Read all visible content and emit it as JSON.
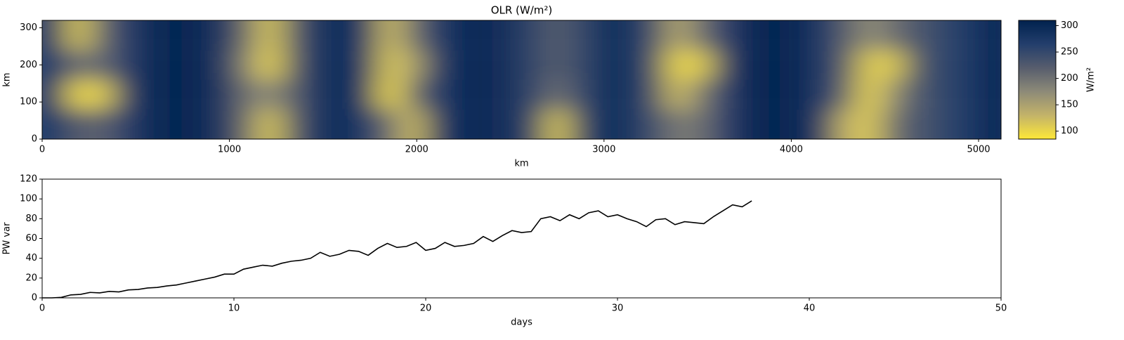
{
  "chart_data": [
    {
      "type": "heatmap",
      "title": "OLR (W/m²)",
      "xlabel": "km",
      "ylabel": "km",
      "xlim": [
        0,
        5120
      ],
      "ylim": [
        0,
        320
      ],
      "xticks": [
        0,
        1000,
        2000,
        3000,
        4000,
        5000
      ],
      "yticks": [
        0,
        100,
        200,
        300
      ],
      "x": [
        64,
        192,
        320,
        448,
        576,
        704,
        832,
        960,
        1088,
        1216,
        1344,
        1472,
        1600,
        1728,
        1856,
        1984,
        2112,
        2240,
        2368,
        2496,
        2624,
        2752,
        2880,
        3008,
        3136,
        3264,
        3392,
        3520,
        3648,
        3776,
        3904,
        4032,
        4160,
        4288,
        4416,
        4544,
        4672,
        4800,
        4928,
        5056
      ],
      "y": [
        40,
        120,
        200,
        280
      ],
      "z": [
        [
          270,
          220,
          215,
          260,
          295,
          305,
          300,
          280,
          200,
          110,
          220,
          280,
          295,
          270,
          200,
          120,
          270,
          295,
          300,
          285,
          250,
          110,
          250,
          290,
          280,
          240,
          190,
          200,
          260,
          300,
          305,
          300,
          270,
          130,
          110,
          200,
          230,
          250,
          270,
          295
        ],
        [
          270,
          100,
          110,
          260,
          295,
          305,
          300,
          280,
          200,
          170,
          220,
          280,
          295,
          270,
          95,
          200,
          270,
          295,
          300,
          285,
          250,
          200,
          250,
          290,
          280,
          240,
          120,
          190,
          260,
          300,
          305,
          300,
          270,
          210,
          100,
          170,
          230,
          250,
          270,
          295
        ],
        [
          270,
          200,
          210,
          260,
          295,
          305,
          300,
          280,
          180,
          100,
          220,
          280,
          295,
          270,
          110,
          150,
          270,
          295,
          300,
          285,
          250,
          220,
          250,
          290,
          280,
          240,
          100,
          110,
          260,
          300,
          305,
          300,
          270,
          220,
          110,
          110,
          230,
          250,
          270,
          295
        ],
        [
          270,
          110,
          210,
          260,
          295,
          305,
          300,
          280,
          200,
          110,
          220,
          280,
          295,
          270,
          120,
          200,
          270,
          295,
          300,
          285,
          250,
          220,
          250,
          290,
          280,
          240,
          140,
          200,
          260,
          300,
          305,
          300,
          270,
          220,
          170,
          200,
          230,
          250,
          270,
          295
        ]
      ],
      "clim": [
        85,
        310
      ],
      "cticks": [
        100,
        150,
        200,
        250,
        300
      ],
      "clabel": "W/m²",
      "colorscale": [
        "#fee838",
        "#c3b369",
        "#8d8a78",
        "#575d6d",
        "#233e6c",
        "#00224e"
      ]
    },
    {
      "type": "line",
      "xlabel": "days",
      "ylabel": "PW var",
      "color": "#000000",
      "xlim": [
        0,
        50
      ],
      "ylim": [
        0,
        120
      ],
      "xticks": [
        0,
        10,
        20,
        30,
        40,
        50
      ],
      "yticks": [
        0,
        20,
        40,
        60,
        80,
        100,
        120
      ],
      "x": [
        0,
        0.5,
        1,
        1.5,
        2,
        2.5,
        3,
        3.5,
        4,
        4.5,
        5,
        5.5,
        6,
        6.5,
        7,
        7.5,
        8,
        8.5,
        9,
        9.5,
        10,
        10.5,
        11,
        11.5,
        12,
        12.5,
        13,
        13.5,
        14,
        14.5,
        15,
        15.5,
        16,
        16.5,
        17,
        17.5,
        18,
        18.5,
        19,
        19.5,
        20,
        20.5,
        21,
        21.5,
        22,
        22.5,
        23,
        23.5,
        24,
        24.5,
        25,
        25.5,
        26,
        26.5,
        27,
        27.5,
        28,
        28.5,
        29,
        29.5,
        30,
        30.5,
        31,
        31.5,
        32,
        32.5,
        33,
        33.5,
        34,
        34.5,
        35,
        35.5,
        36,
        36.5,
        37
      ],
      "values": [
        0,
        0,
        0.5,
        3,
        3.5,
        5.5,
        5,
        6.5,
        6,
        8,
        8.5,
        10,
        10.5,
        12,
        13,
        15,
        17,
        19,
        21,
        24,
        24,
        29,
        31,
        33,
        32,
        35,
        37,
        38,
        40,
        46,
        42,
        44,
        48,
        47,
        43,
        50,
        55,
        51,
        52,
        56,
        48,
        50,
        56,
        52,
        53,
        55,
        62,
        57,
        63,
        68,
        66,
        67,
        80,
        82,
        78,
        84,
        80,
        86,
        88,
        82,
        84,
        80,
        77,
        72,
        79,
        80,
        74,
        77,
        76,
        75,
        82,
        88,
        94,
        92,
        98
      ]
    }
  ]
}
